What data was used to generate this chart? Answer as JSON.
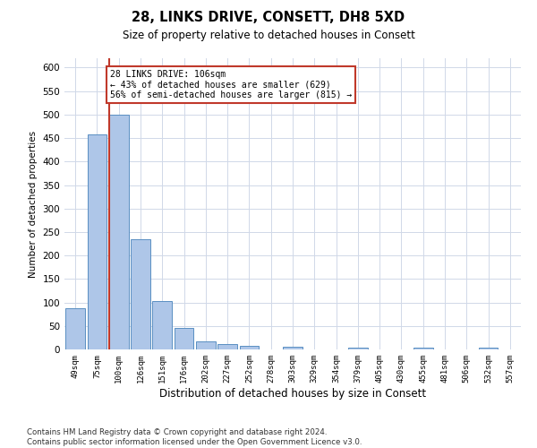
{
  "title": "28, LINKS DRIVE, CONSETT, DH8 5XD",
  "subtitle": "Size of property relative to detached houses in Consett",
  "xlabel": "Distribution of detached houses by size in Consett",
  "ylabel": "Number of detached properties",
  "categories": [
    "49sqm",
    "75sqm",
    "100sqm",
    "126sqm",
    "151sqm",
    "176sqm",
    "202sqm",
    "227sqm",
    "252sqm",
    "278sqm",
    "303sqm",
    "329sqm",
    "354sqm",
    "379sqm",
    "405sqm",
    "430sqm",
    "455sqm",
    "481sqm",
    "506sqm",
    "532sqm",
    "557sqm"
  ],
  "values": [
    88,
    457,
    500,
    235,
    103,
    46,
    18,
    11,
    7,
    0,
    5,
    0,
    0,
    4,
    0,
    0,
    3,
    0,
    0,
    3,
    0
  ],
  "bar_color": "#aec6e8",
  "bar_edge_color": "#5a8fc2",
  "highlight_index": 2,
  "highlight_color": "#c0392b",
  "annotation_line1": "28 LINKS DRIVE: 106sqm",
  "annotation_line2": "← 43% of detached houses are smaller (629)",
  "annotation_line3": "56% of semi-detached houses are larger (815) →",
  "ylim": [
    0,
    620
  ],
  "yticks": [
    0,
    50,
    100,
    150,
    200,
    250,
    300,
    350,
    400,
    450,
    500,
    550,
    600
  ],
  "footer_line1": "Contains HM Land Registry data © Crown copyright and database right 2024.",
  "footer_line2": "Contains public sector information licensed under the Open Government Licence v3.0.",
  "background_color": "#ffffff",
  "grid_color": "#d0d8e8"
}
